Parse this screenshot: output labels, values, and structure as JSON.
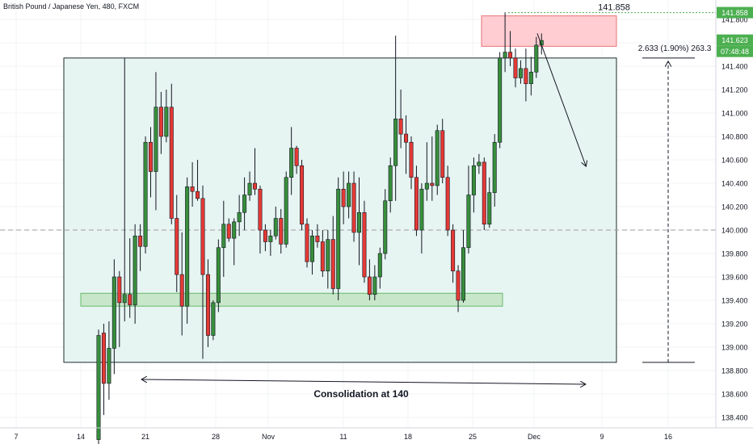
{
  "header": {
    "title": "British Pound / Japanese Yen, 480, FXCM"
  },
  "chart_data": {
    "type": "candlestick",
    "symbol": "British Pound / Japanese Yen",
    "interval": "480",
    "source": "FXCM",
    "ylim": [
      138.35,
      141.96
    ],
    "y_ticks": [
      "138.400",
      "138.600",
      "138.800",
      "139.000",
      "139.200",
      "139.400",
      "139.600",
      "139.800",
      "140.000",
      "140.200",
      "140.400",
      "140.600",
      "140.800",
      "141.000",
      "141.200",
      "141.400",
      "141.600",
      "141.800"
    ],
    "x_ticks": [
      "7",
      "14",
      "21",
      "28",
      "Nov",
      "11",
      "18",
      "25",
      "Dec",
      "9",
      "16"
    ],
    "price_badges": {
      "high": {
        "text": "141.858",
        "color": "#4caf50"
      },
      "last": {
        "text": "141.623",
        "color": "#4caf50"
      },
      "countdown": {
        "text": "07:48:48",
        "color": "#4caf50"
      }
    },
    "annotations": {
      "high_label": "141.858",
      "measure_label": "2.633 (1.90%) 263.3",
      "consolidation_label": "Consolidation at 140"
    },
    "colors": {
      "up": "#388e3c",
      "down": "#e53935",
      "range_fill": "#e6f4f2",
      "support_fill": "#c8e6c9",
      "resistance_fill": "#ffcdd2"
    },
    "candles": [
      [
        138.21,
        139.15,
        138.09,
        139.1
      ],
      [
        139.12,
        139.2,
        138.42,
        138.69
      ],
      [
        138.69,
        139.22,
        138.55,
        138.99
      ],
      [
        138.99,
        139.75,
        138.77,
        139.6
      ],
      [
        139.6,
        139.65,
        139.0,
        139.38
      ],
      [
        139.38,
        141.47,
        139.22,
        139.45
      ],
      [
        139.45,
        139.93,
        139.25,
        139.36
      ],
      [
        139.36,
        140.05,
        139.2,
        139.95
      ],
      [
        139.95,
        140.05,
        139.65,
        139.86
      ],
      [
        139.86,
        140.8,
        139.8,
        140.75
      ],
      [
        140.75,
        140.88,
        140.28,
        140.5
      ],
      [
        140.5,
        141.35,
        140.17,
        141.05
      ],
      [
        141.05,
        141.18,
        140.65,
        140.8
      ],
      [
        140.8,
        141.2,
        140.75,
        141.05
      ],
      [
        141.05,
        141.25,
        140.05,
        140.1
      ],
      [
        140.1,
        140.3,
        139.47,
        139.62
      ],
      [
        139.62,
        139.98,
        139.1,
        139.35
      ],
      [
        139.35,
        140.45,
        139.2,
        140.37
      ],
      [
        140.37,
        140.58,
        140.2,
        140.33
      ],
      [
        140.33,
        140.6,
        140.25,
        140.27
      ],
      [
        140.27,
        140.38,
        138.9,
        139.62
      ],
      [
        139.62,
        139.75,
        139.0,
        139.1
      ],
      [
        139.1,
        139.4,
        139.06,
        139.38
      ],
      [
        139.38,
        139.92,
        139.3,
        139.85
      ],
      [
        139.85,
        140.25,
        139.6,
        140.05
      ],
      [
        140.05,
        140.1,
        139.9,
        139.93
      ],
      [
        139.93,
        140.1,
        139.7,
        140.07
      ],
      [
        140.07,
        140.3,
        139.95,
        140.15
      ],
      [
        140.15,
        140.45,
        140.0,
        140.3
      ],
      [
        140.3,
        140.5,
        140.25,
        140.4
      ],
      [
        140.4,
        140.7,
        140.3,
        140.35
      ],
      [
        140.35,
        140.38,
        139.8,
        140.0
      ],
      [
        140.0,
        140.05,
        139.82,
        139.9
      ],
      [
        139.9,
        140.0,
        139.78,
        139.95
      ],
      [
        139.95,
        140.2,
        139.92,
        140.1
      ],
      [
        140.1,
        140.18,
        139.8,
        139.88
      ],
      [
        139.88,
        140.5,
        139.85,
        140.45
      ],
      [
        140.45,
        140.88,
        140.3,
        140.7
      ],
      [
        140.7,
        140.72,
        140.48,
        140.55
      ],
      [
        140.55,
        140.6,
        140.0,
        140.05
      ],
      [
        140.05,
        140.1,
        139.68,
        139.73
      ],
      [
        139.73,
        140.0,
        139.62,
        139.95
      ],
      [
        139.95,
        140.05,
        139.85,
        139.9
      ],
      [
        139.9,
        140.0,
        139.6,
        139.65
      ],
      [
        139.65,
        140.0,
        139.5,
        139.92
      ],
      [
        139.92,
        140.12,
        139.45,
        139.5
      ],
      [
        139.5,
        140.45,
        139.4,
        140.35
      ],
      [
        140.35,
        140.5,
        140.05,
        140.2
      ],
      [
        140.2,
        140.5,
        140.1,
        140.4
      ],
      [
        140.4,
        140.5,
        139.9,
        139.98
      ],
      [
        139.98,
        140.45,
        139.7,
        140.15
      ],
      [
        140.15,
        140.25,
        139.55,
        139.6
      ],
      [
        139.6,
        139.75,
        139.4,
        139.45
      ],
      [
        139.45,
        139.7,
        139.4,
        139.6
      ],
      [
        139.6,
        139.85,
        139.5,
        139.8
      ],
      [
        139.8,
        140.35,
        139.75,
        140.25
      ],
      [
        140.25,
        140.62,
        140.15,
        140.55
      ],
      [
        140.55,
        141.66,
        140.25,
        140.95
      ],
      [
        140.95,
        141.2,
        140.7,
        140.82
      ],
      [
        140.82,
        140.98,
        140.48,
        140.75
      ],
      [
        140.75,
        140.8,
        140.35,
        140.45
      ],
      [
        140.45,
        140.55,
        139.95,
        140.0
      ],
      [
        140.0,
        140.4,
        139.8,
        140.35
      ],
      [
        140.35,
        140.75,
        140.25,
        140.4
      ],
      [
        140.4,
        140.8,
        140.25,
        140.38
      ],
      [
        140.38,
        140.9,
        140.3,
        140.85
      ],
      [
        140.85,
        140.95,
        140.4,
        140.45
      ],
      [
        140.45,
        140.55,
        139.95,
        140.0
      ],
      [
        140.0,
        140.05,
        139.55,
        139.65
      ],
      [
        139.65,
        139.7,
        139.3,
        139.4
      ],
      [
        139.4,
        140.0,
        139.38,
        139.85
      ],
      [
        139.85,
        140.55,
        139.8,
        140.3
      ],
      [
        140.3,
        140.62,
        140.15,
        140.55
      ],
      [
        140.55,
        140.65,
        140.48,
        140.58
      ],
      [
        140.58,
        140.62,
        140.0,
        140.05
      ],
      [
        140.05,
        140.45,
        140.02,
        140.32
      ],
      [
        140.32,
        140.82,
        140.2,
        140.75
      ],
      [
        140.75,
        141.52,
        140.7,
        141.47
      ],
      [
        141.47,
        141.86,
        141.35,
        141.52
      ],
      [
        141.52,
        141.7,
        141.4,
        141.47
      ],
      [
        141.47,
        141.55,
        141.22,
        141.3
      ],
      [
        141.3,
        141.45,
        141.25,
        141.38
      ],
      [
        141.38,
        141.55,
        141.1,
        141.25
      ],
      [
        141.25,
        141.48,
        141.15,
        141.35
      ],
      [
        141.35,
        141.65,
        141.3,
        141.58
      ],
      [
        141.58,
        141.68,
        141.5,
        141.62
      ]
    ]
  }
}
